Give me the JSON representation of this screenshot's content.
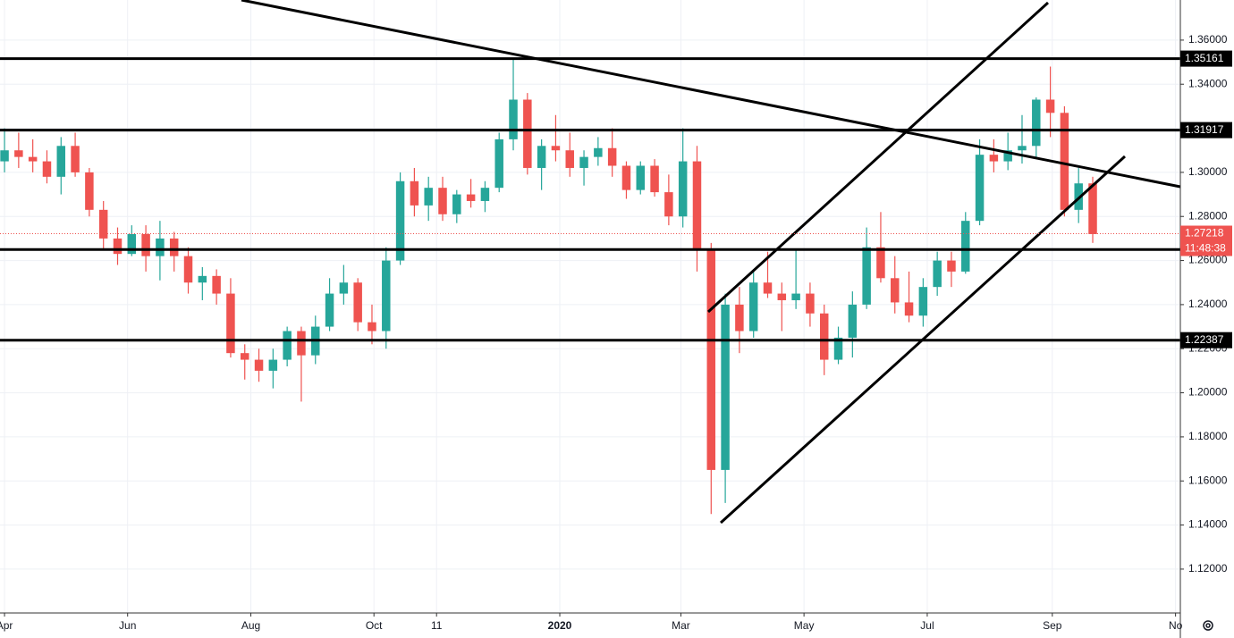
{
  "chart_data": {
    "type": "candlestick",
    "x": [
      0,
      1,
      2,
      3,
      4,
      5,
      6,
      7,
      8,
      9,
      10,
      11,
      12,
      13,
      14,
      15,
      16,
      17,
      18,
      19,
      20,
      21,
      22,
      23,
      24,
      25,
      26,
      27,
      28,
      29,
      30,
      31,
      32,
      33,
      34,
      35,
      36,
      37,
      38,
      39,
      40,
      41,
      42,
      43,
      44,
      45,
      46,
      47,
      48,
      49,
      50,
      51,
      52,
      53,
      54,
      55,
      56,
      57,
      58,
      59,
      60,
      61,
      62,
      63,
      64,
      65,
      66,
      67,
      68,
      69,
      70,
      71,
      72,
      73,
      74,
      75,
      76,
      77
    ],
    "open": [
      1.305,
      1.31,
      1.307,
      1.305,
      1.298,
      1.312,
      1.3,
      1.283,
      1.27,
      1.263,
      1.272,
      1.262,
      1.27,
      1.262,
      1.25,
      1.253,
      1.245,
      1.218,
      1.215,
      1.21,
      1.215,
      1.228,
      1.217,
      1.23,
      1.245,
      1.25,
      1.232,
      1.228,
      1.26,
      1.296,
      1.285,
      1.293,
      1.281,
      1.29,
      1.287,
      1.293,
      1.315,
      1.333,
      1.302,
      1.312,
      1.31,
      1.302,
      1.307,
      1.311,
      1.303,
      1.292,
      1.303,
      1.291,
      1.28,
      1.305,
      1.265,
      1.165,
      1.24,
      1.228,
      1.25,
      1.245,
      1.242,
      1.245,
      1.236,
      1.215,
      1.225,
      1.24,
      1.266,
      1.252,
      1.241,
      1.235,
      1.248,
      1.26,
      1.255,
      1.278,
      1.308,
      1.305,
      1.31,
      1.312,
      1.333,
      1.327,
      1.283,
      1.295
    ],
    "high": [
      1.32,
      1.318,
      1.315,
      1.31,
      1.316,
      1.318,
      1.302,
      1.287,
      1.275,
      1.276,
      1.276,
      1.278,
      1.273,
      1.266,
      1.257,
      1.256,
      1.252,
      1.222,
      1.22,
      1.22,
      1.23,
      1.23,
      1.235,
      1.252,
      1.258,
      1.252,
      1.24,
      1.266,
      1.3,
      1.302,
      1.298,
      1.298,
      1.292,
      1.297,
      1.296,
      1.318,
      1.352,
      1.336,
      1.315,
      1.326,
      1.318,
      1.31,
      1.316,
      1.32,
      1.305,
      1.305,
      1.306,
      1.299,
      1.32,
      1.312,
      1.268,
      1.245,
      1.248,
      1.255,
      1.264,
      1.25,
      1.265,
      1.25,
      1.24,
      1.23,
      1.246,
      1.275,
      1.282,
      1.262,
      1.255,
      1.252,
      1.264,
      1.264,
      1.282,
      1.315,
      1.315,
      1.318,
      1.326,
      1.334,
      1.348,
      1.33,
      1.302,
      1.298
    ],
    "low": [
      1.3,
      1.302,
      1.3,
      1.295,
      1.29,
      1.298,
      1.28,
      1.265,
      1.258,
      1.262,
      1.255,
      1.251,
      1.255,
      1.245,
      1.242,
      1.24,
      1.216,
      1.206,
      1.205,
      1.202,
      1.212,
      1.196,
      1.213,
      1.228,
      1.24,
      1.228,
      1.222,
      1.22,
      1.258,
      1.28,
      1.278,
      1.278,
      1.277,
      1.284,
      1.282,
      1.291,
      1.31,
      1.299,
      1.292,
      1.305,
      1.298,
      1.294,
      1.303,
      1.298,
      1.288,
      1.29,
      1.289,
      1.276,
      1.275,
      1.255,
      1.145,
      1.15,
      1.218,
      1.225,
      1.243,
      1.228,
      1.238,
      1.23,
      1.208,
      1.213,
      1.216,
      1.238,
      1.25,
      1.236,
      1.232,
      1.23,
      1.244,
      1.248,
      1.254,
      1.276,
      1.3,
      1.301,
      1.304,
      1.306,
      1.316,
      1.28,
      1.277,
      1.268
    ],
    "close": [
      1.31,
      1.307,
      1.305,
      1.298,
      1.312,
      1.3,
      1.283,
      1.27,
      1.263,
      1.272,
      1.262,
      1.27,
      1.262,
      1.25,
      1.253,
      1.245,
      1.218,
      1.215,
      1.21,
      1.215,
      1.228,
      1.217,
      1.23,
      1.245,
      1.25,
      1.232,
      1.228,
      1.26,
      1.296,
      1.285,
      1.293,
      1.281,
      1.29,
      1.287,
      1.293,
      1.315,
      1.333,
      1.302,
      1.312,
      1.31,
      1.302,
      1.307,
      1.311,
      1.303,
      1.292,
      1.303,
      1.291,
      1.28,
      1.305,
      1.265,
      1.165,
      1.24,
      1.228,
      1.25,
      1.245,
      1.242,
      1.245,
      1.236,
      1.215,
      1.225,
      1.24,
      1.266,
      1.252,
      1.241,
      1.235,
      1.248,
      1.26,
      1.255,
      1.278,
      1.308,
      1.305,
      1.31,
      1.312,
      1.333,
      1.327,
      1.283,
      1.295,
      1.272
    ],
    "up_color": "#26a69a",
    "down_color": "#ef5350",
    "xlim": [
      -0.32,
      83.2
    ],
    "xticks": [
      {
        "value": 0,
        "label": "Apr"
      },
      {
        "value": 8.71,
        "label": "Jun"
      },
      {
        "value": 17.43,
        "label": "Aug"
      },
      {
        "value": 26.14,
        "label": "Oct"
      },
      {
        "value": 30.57,
        "label": "11"
      },
      {
        "value": 39.29,
        "label": "2020"
      },
      {
        "value": 47.86,
        "label": "Mar"
      },
      {
        "value": 56.57,
        "label": "May"
      },
      {
        "value": 65.29,
        "label": "Jul"
      },
      {
        "value": 74.14,
        "label": "Sep"
      },
      {
        "value": 82.86,
        "label": "No"
      }
    ],
    "ylim": [
      1.1001,
      1.3782
    ],
    "yticks": [
      {
        "value": 1.12,
        "label": "1.12000"
      },
      {
        "value": 1.14,
        "label": "1.14000"
      },
      {
        "value": 1.16,
        "label": "1.16000"
      },
      {
        "value": 1.18,
        "label": "1.18000"
      },
      {
        "value": 1.2,
        "label": "1.20000"
      },
      {
        "value": 1.22,
        "label": "1.22000"
      },
      {
        "value": 1.24,
        "label": "1.24000"
      },
      {
        "value": 1.26,
        "label": "1.26000"
      },
      {
        "value": 1.28,
        "label": "1.28000"
      },
      {
        "value": 1.3,
        "label": "1.30000"
      },
      {
        "value": 1.32,
        "label": "1.32000"
      },
      {
        "value": 1.34,
        "label": "1.34000"
      },
      {
        "value": 1.36,
        "label": "1.36000"
      }
    ],
    "grid": true,
    "levels": [
      1.35161,
      1.31917,
      1.22387
    ],
    "support_line": 1.265,
    "last_price": 1.27218,
    "countdown": "11:48:38"
  }
}
